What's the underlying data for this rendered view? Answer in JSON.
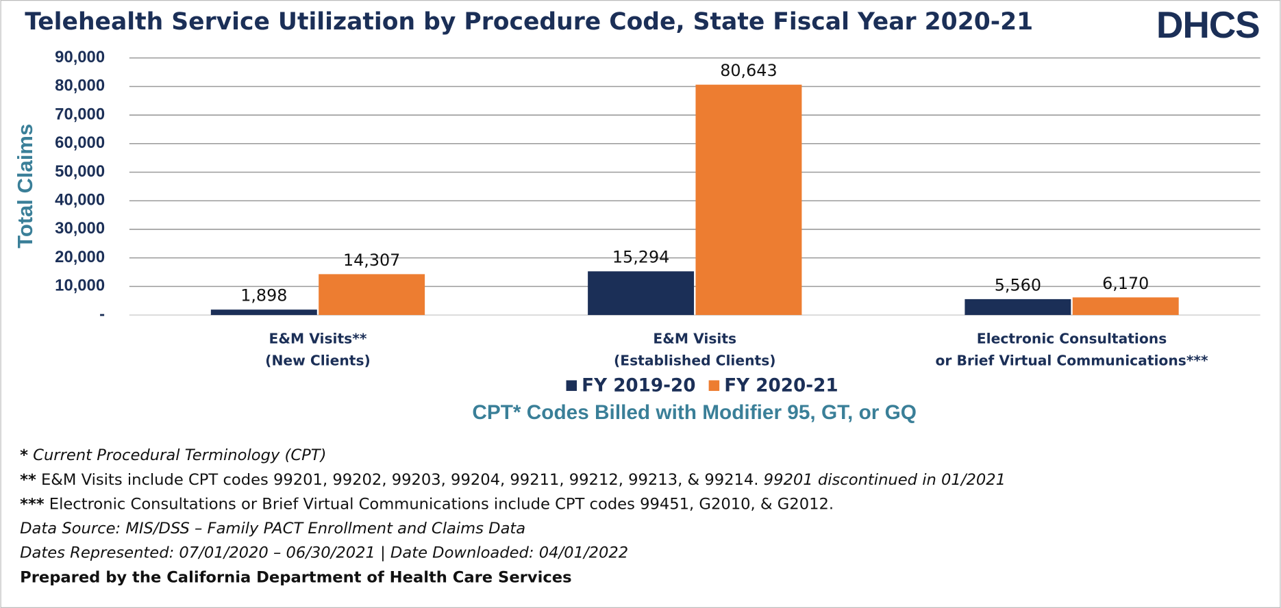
{
  "chart_data": {
    "type": "bar",
    "title": "Telehealth Service Utilization by Procedure Code, State Fiscal Year 2020-21",
    "logo": "DHCS",
    "y_label": "Total Claims",
    "x_label": "CPT* Codes Billed with Modifier 95, GT, or GQ",
    "categories": [
      [
        "E&M Visits**",
        "(New Clients)"
      ],
      [
        "E&M Visits",
        "(Established  Clients)"
      ],
      [
        "Electronic Consultations",
        "or Brief Virtual Communications***"
      ]
    ],
    "series": [
      {
        "name": "FY 2019-20",
        "color": "#1b2f57",
        "values": [
          1898,
          15294,
          5560
        ],
        "value_labels": [
          "1,898",
          "15,294",
          "5,560"
        ]
      },
      {
        "name": "FY 2020-21",
        "color": "#ed7d31",
        "values": [
          14307,
          80643,
          6170
        ],
        "value_labels": [
          "14,307",
          "80,643",
          "6,170"
        ]
      }
    ],
    "ylim": [
      0,
      90000
    ],
    "yticks": [
      {
        "value": 0,
        "label": "-"
      },
      {
        "value": 10000,
        "label": "10,000"
      },
      {
        "value": 20000,
        "label": "20,000"
      },
      {
        "value": 30000,
        "label": "30,000"
      },
      {
        "value": 40000,
        "label": "40,000"
      },
      {
        "value": 50000,
        "label": "50,000"
      },
      {
        "value": 60000,
        "label": "60,000"
      },
      {
        "value": 70000,
        "label": "70,000"
      },
      {
        "value": 80000,
        "label": "80,000"
      },
      {
        "value": 90000,
        "label": "90,000"
      }
    ],
    "grid": true
  },
  "footnotes": [
    {
      "mark": "*",
      "text": "Current Procedural Terminology (CPT)"
    },
    {
      "mark": "**",
      "text": "E&M Visits include CPT codes 99201, 99202, 99203, 99204, 99211, 99212, 99213, & 99214.",
      "note": "99201 discontinued in 01/2021"
    },
    {
      "mark": "***",
      "text": "Electronic Consultations or Brief Virtual Communications include CPT codes 99451, G2010, & G2012."
    },
    {
      "text": "Data Source: MIS/DSS – Family PACT Enrollment and Claims Data"
    },
    {
      "text": "Dates Represented: 07/01/2020 – 06/30/2021 | Date Downloaded: 04/01/2022"
    },
    {
      "text": "Prepared by the California Department of Health Care Services"
    }
  ]
}
